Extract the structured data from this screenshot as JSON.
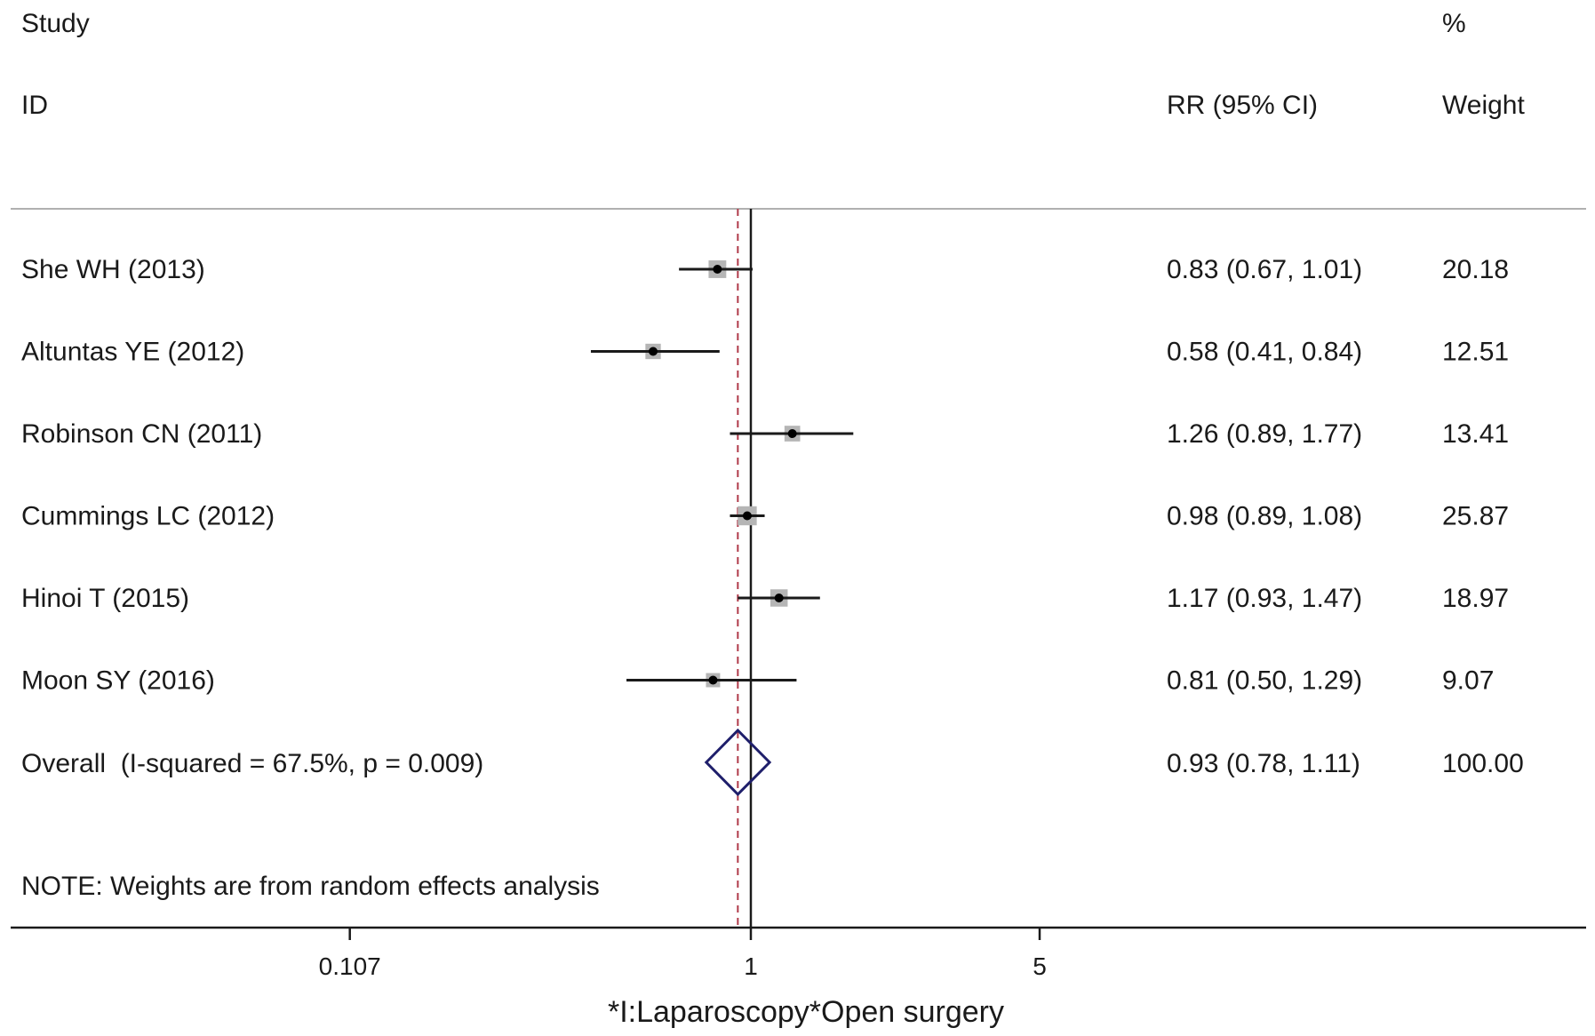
{
  "headers": {
    "study": "Study",
    "id": "ID",
    "rr": "RR (95% CI)",
    "percent": "%",
    "weight": "Weight"
  },
  "note": "NOTE: Weights are from random effects analysis",
  "chart_data": {
    "type": "forest",
    "scale": "log",
    "xlabel": "*I:Laparoscopy*Open surgery",
    "xticks": [
      {
        "value": 0.107,
        "label": "0.107"
      },
      {
        "value": 1,
        "label": "1"
      },
      {
        "value": 5,
        "label": "5"
      }
    ],
    "null_line": 1,
    "overall_line": 0.93,
    "studies": [
      {
        "study": "She WH (2013)",
        "rr": 0.83,
        "lower": 0.67,
        "upper": 1.01,
        "ci_text": "0.83 (0.67, 1.01)",
        "weight": 20.18,
        "weight_text": "20.18"
      },
      {
        "study": "Altuntas YE (2012)",
        "rr": 0.58,
        "lower": 0.41,
        "upper": 0.84,
        "ci_text": "0.58 (0.41, 0.84)",
        "weight": 12.51,
        "weight_text": "12.51"
      },
      {
        "study": "Robinson CN (2011)",
        "rr": 1.26,
        "lower": 0.89,
        "upper": 1.77,
        "ci_text": "1.26 (0.89, 1.77)",
        "weight": 13.41,
        "weight_text": "13.41"
      },
      {
        "study": "Cummings LC (2012)",
        "rr": 0.98,
        "lower": 0.89,
        "upper": 1.08,
        "ci_text": "0.98 (0.89, 1.08)",
        "weight": 25.87,
        "weight_text": "25.87"
      },
      {
        "study": "Hinoi T (2015)",
        "rr": 1.17,
        "lower": 0.93,
        "upper": 1.47,
        "ci_text": "1.17 (0.93, 1.47)",
        "weight": 18.97,
        "weight_text": "18.97"
      },
      {
        "study": "Moon SY (2016)",
        "rr": 0.81,
        "lower": 0.5,
        "upper": 1.29,
        "ci_text": "0.81 (0.50, 1.29)",
        "weight": 9.07,
        "weight_text": "9.07"
      }
    ],
    "overall": {
      "label": "Overall  (I-squared = 67.5%, p = 0.009)",
      "rr": 0.93,
      "lower": 0.78,
      "upper": 1.11,
      "ci_text": "0.93 (0.78, 1.11)",
      "weight_text": "100.00"
    },
    "colors": {
      "diamond": "#1f1f6b",
      "overall_line": "#b03a4a",
      "weight_box": "#b5b5b5",
      "axis": "#1a1a1a",
      "divider": "#b0b0b0"
    }
  }
}
